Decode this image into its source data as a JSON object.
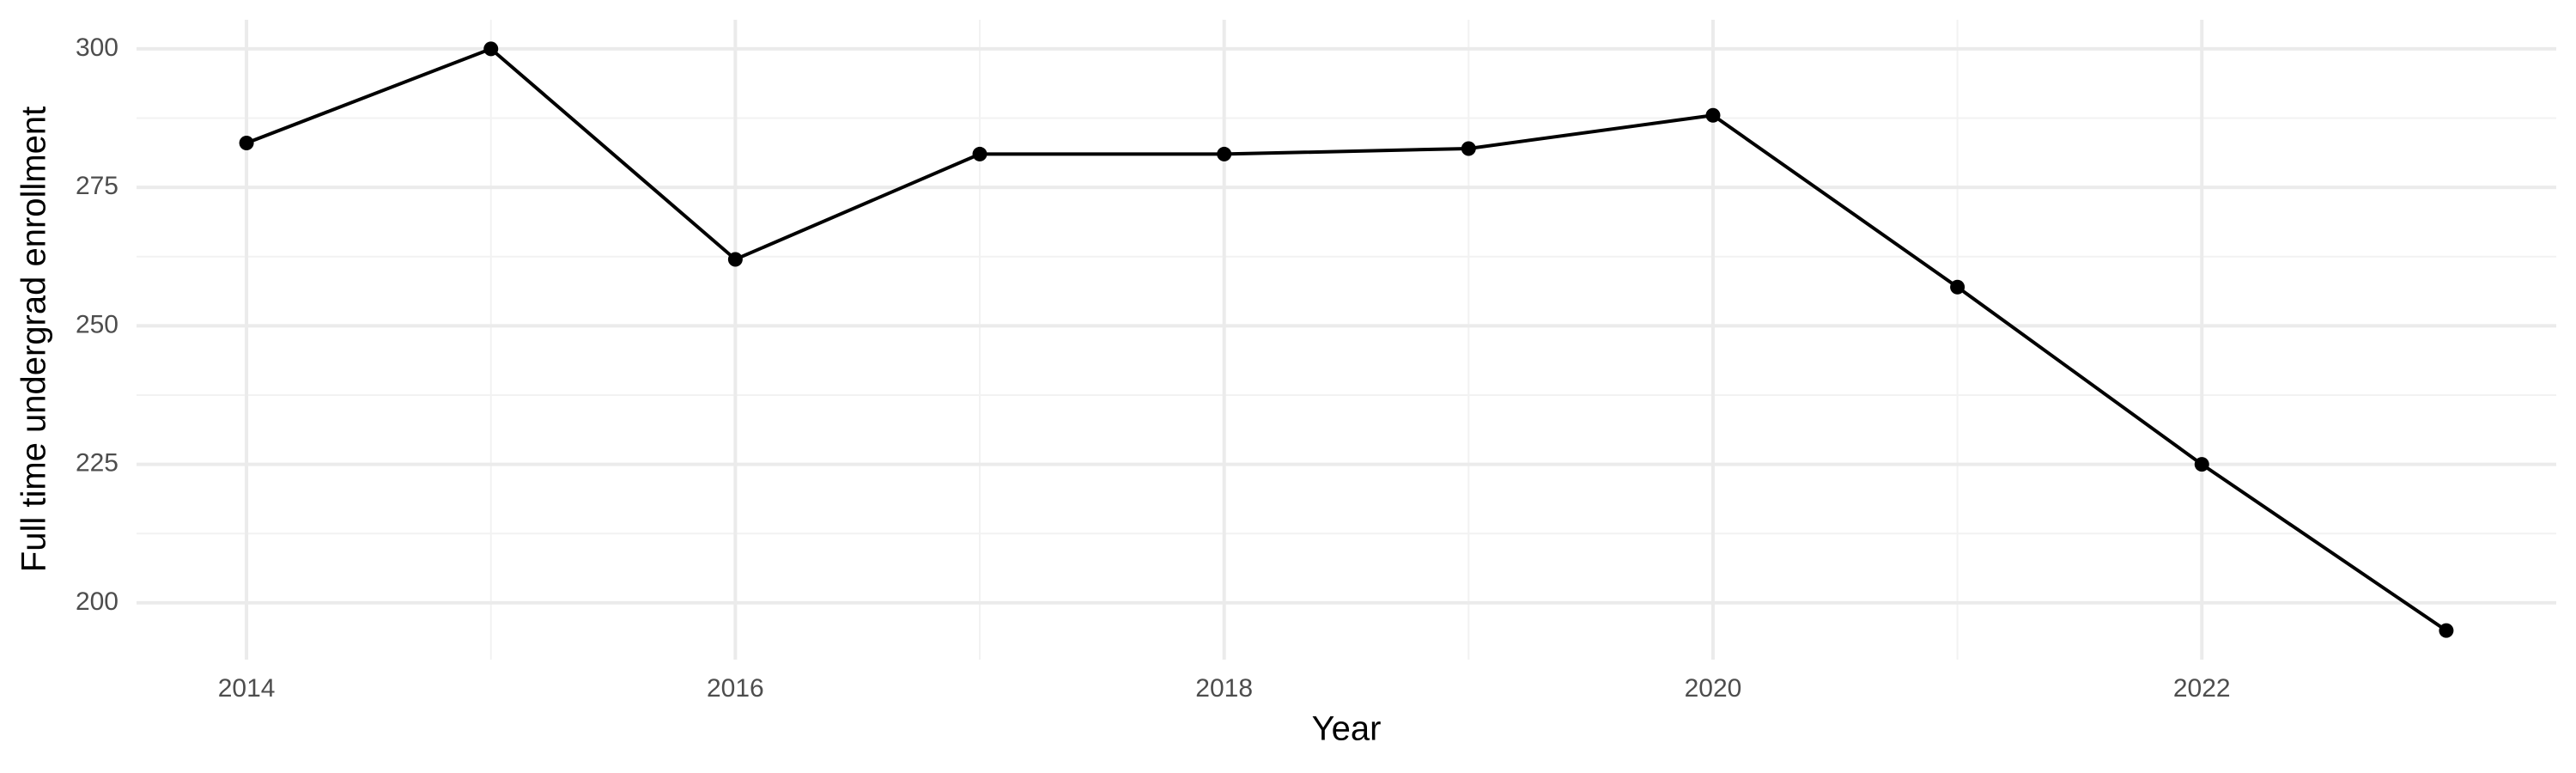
{
  "chart_data": {
    "type": "line",
    "x_label": "Year",
    "y_label": "Full time undergrad enrollment",
    "x": [
      2014,
      2015,
      2016,
      2017,
      2018,
      2019,
      2020,
      2021,
      2022,
      2023
    ],
    "values": [
      283,
      300,
      262,
      281,
      281,
      282,
      288,
      257,
      225,
      195
    ],
    "color": "#000000",
    "xlim": [
      2013.55,
      2023.45
    ],
    "xticks": [
      2014,
      2016,
      2018,
      2020,
      2022
    ],
    "ylim": [
      189.75,
      305.25
    ],
    "yticks": [
      200,
      225,
      250,
      275,
      300
    ],
    "grid": true,
    "minor_grid": true
  }
}
